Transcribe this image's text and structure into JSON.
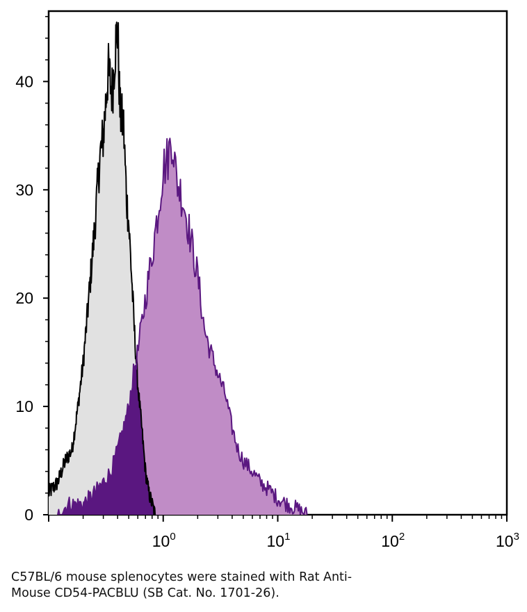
{
  "chart_data": {
    "type": "area",
    "x_scale": "log",
    "xlim": [
      0.1,
      1000
    ],
    "ylim": [
      0,
      46.5
    ],
    "y_ticks": [
      0,
      10,
      20,
      30,
      40
    ],
    "y_tick_labels": [
      "0",
      "10",
      "20",
      "30",
      "40"
    ],
    "x_ticks": [
      1,
      10,
      100,
      1000
    ],
    "x_tick_labels": [
      {
        "base": "10",
        "exp": "0"
      },
      {
        "base": "10",
        "exp": "1"
      },
      {
        "base": "10",
        "exp": "2"
      },
      {
        "base": "10",
        "exp": "3"
      }
    ],
    "xlabel": "",
    "ylabel": "",
    "grid": false,
    "legend": "none",
    "series": [
      {
        "fill": "#e1e1e1",
        "stroke": "#000000",
        "x": [
          0.1,
          0.12,
          0.14,
          0.16,
          0.18,
          0.2,
          0.22,
          0.25,
          0.28,
          0.3,
          0.33,
          0.36,
          0.38,
          0.4,
          0.42,
          0.45,
          0.48,
          0.5,
          0.53,
          0.56,
          0.6,
          0.65,
          0.7,
          0.75,
          0.8,
          0.85
        ],
        "values": [
          2,
          3,
          5,
          6,
          10,
          14,
          19,
          26,
          33,
          35,
          41,
          39,
          43,
          45,
          37,
          36,
          29,
          27,
          22,
          17,
          12,
          8,
          4,
          2,
          1,
          0
        ]
      },
      {
        "fill": "#c08cc6",
        "stroke": "#5a1780",
        "x": [
          0.12,
          0.15,
          0.2,
          0.25,
          0.3,
          0.35,
          0.4,
          0.45,
          0.5,
          0.55,
          0.6,
          0.7,
          0.8,
          0.9,
          1.0,
          1.1,
          1.2,
          1.3,
          1.5,
          1.7,
          2.0,
          2.3,
          2.6,
          3.0,
          3.5,
          4.0,
          4.5,
          5.0,
          6.0,
          7.0,
          8.0,
          9.0,
          10,
          12,
          15,
          18
        ],
        "values": [
          0,
          1,
          1,
          2,
          3,
          4,
          6,
          8,
          10,
          13,
          15,
          20,
          24,
          28,
          32,
          33,
          35,
          31,
          29,
          26,
          22,
          17,
          15,
          13,
          11,
          8,
          6,
          5,
          4,
          3,
          2.5,
          2,
          1.5,
          1,
          0.5,
          0
        ]
      }
    ],
    "overlap_color": "#5a1780",
    "caption_lines": [
      "C57BL/6 mouse splenocytes were stained with Rat Anti-",
      "Mouse CD54-PACBLU (SB Cat. No. 1701-26)."
    ]
  }
}
